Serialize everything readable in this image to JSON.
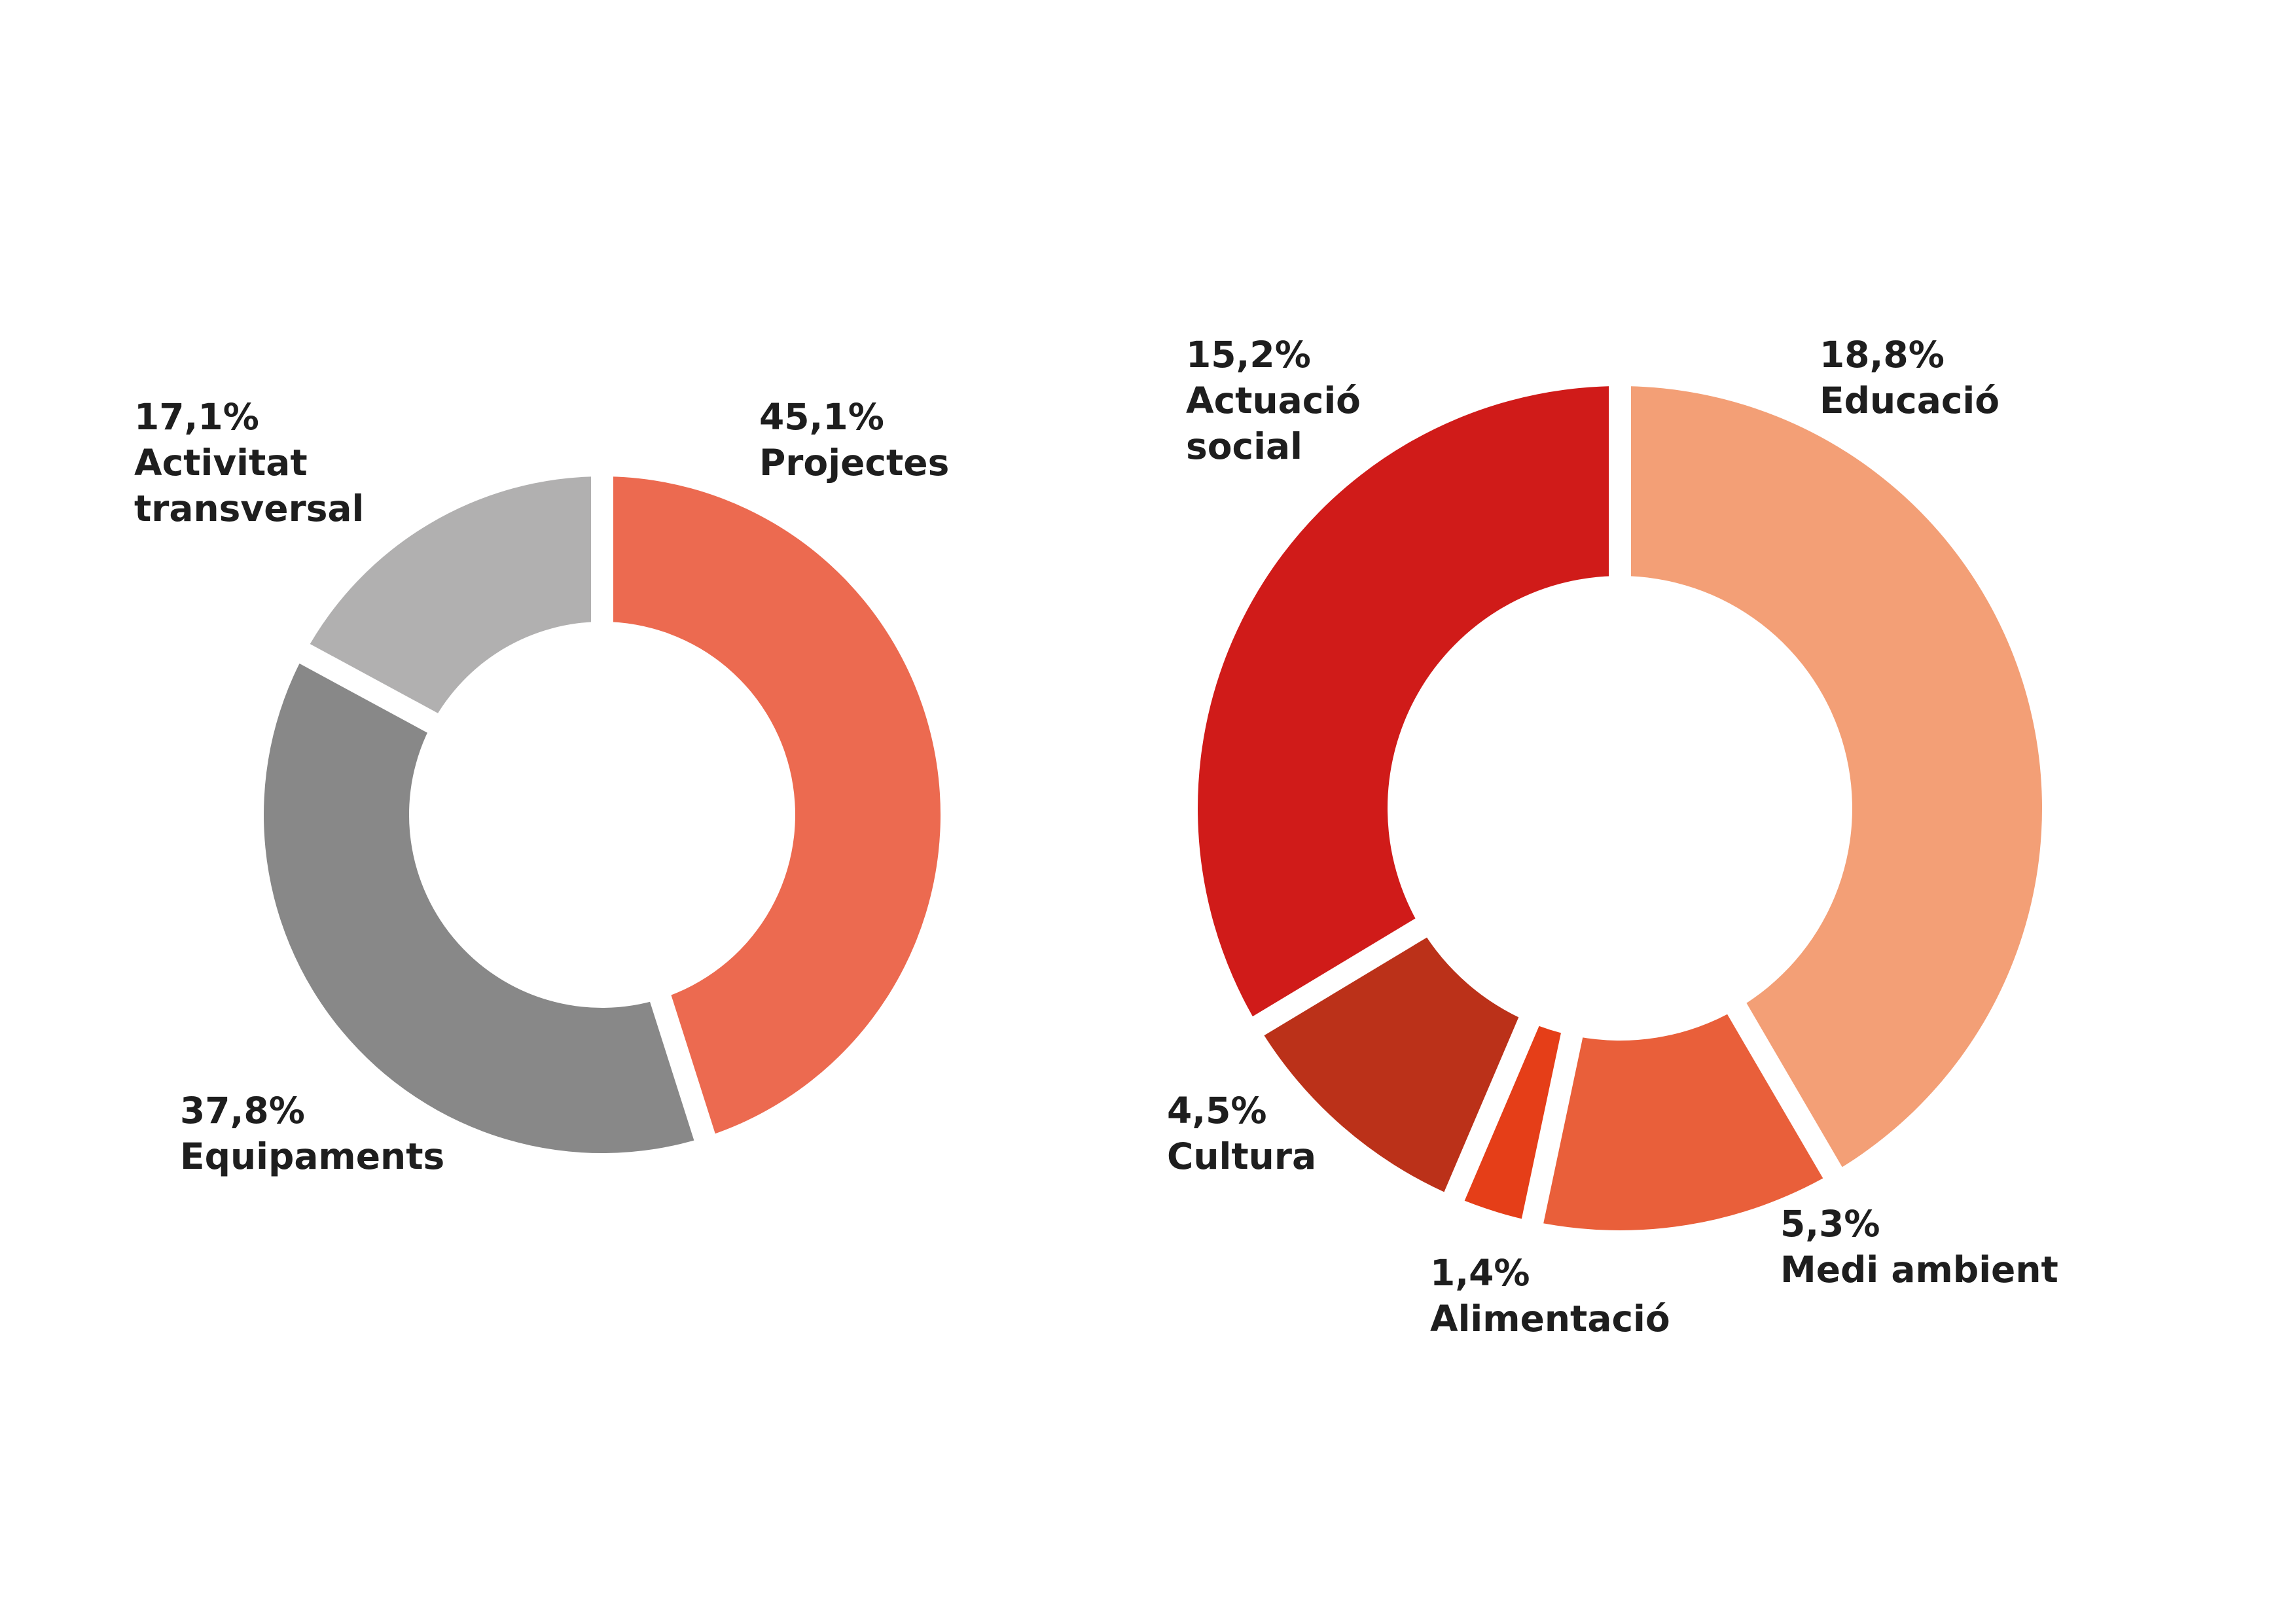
{
  "chart_data": [
    {
      "type": "pie",
      "variant": "donut",
      "categories": [
        "Projectes",
        "Equipaments",
        "Activitat transversal"
      ],
      "values": [
        45.1,
        37.8,
        17.1
      ],
      "colors": [
        "#ec6a50",
        "#888888",
        "#b1b0b0"
      ],
      "labels": [
        {
          "value": "45,1%",
          "lines": [
            "Projectes"
          ]
        },
        {
          "value": "37,8%",
          "lines": [
            "Equipaments"
          ]
        },
        {
          "value": "17,1%",
          "lines": [
            "Activitat",
            "transversal"
          ]
        }
      ]
    },
    {
      "type": "pie",
      "variant": "donut",
      "categories": [
        "Educació",
        "Medi ambient",
        "Alimentació",
        "Cultura",
        "Actuació social"
      ],
      "values": [
        18.8,
        5.3,
        1.4,
        4.5,
        15.2
      ],
      "colors": [
        "#f39f76",
        "#e95f3a",
        "#e53e18",
        "#bb3119",
        "#d01b19"
      ],
      "labels": [
        {
          "value": "18,8%",
          "lines": [
            "Educació"
          ]
        },
        {
          "value": "5,3%",
          "lines": [
            "Medi ambient"
          ]
        },
        {
          "value": "1,4%",
          "lines": [
            "Alimentació"
          ]
        },
        {
          "value": "4,5%",
          "lines": [
            "Cultura"
          ]
        },
        {
          "value": "15,2%",
          "lines": [
            "Actuació",
            "social"
          ]
        }
      ]
    }
  ]
}
